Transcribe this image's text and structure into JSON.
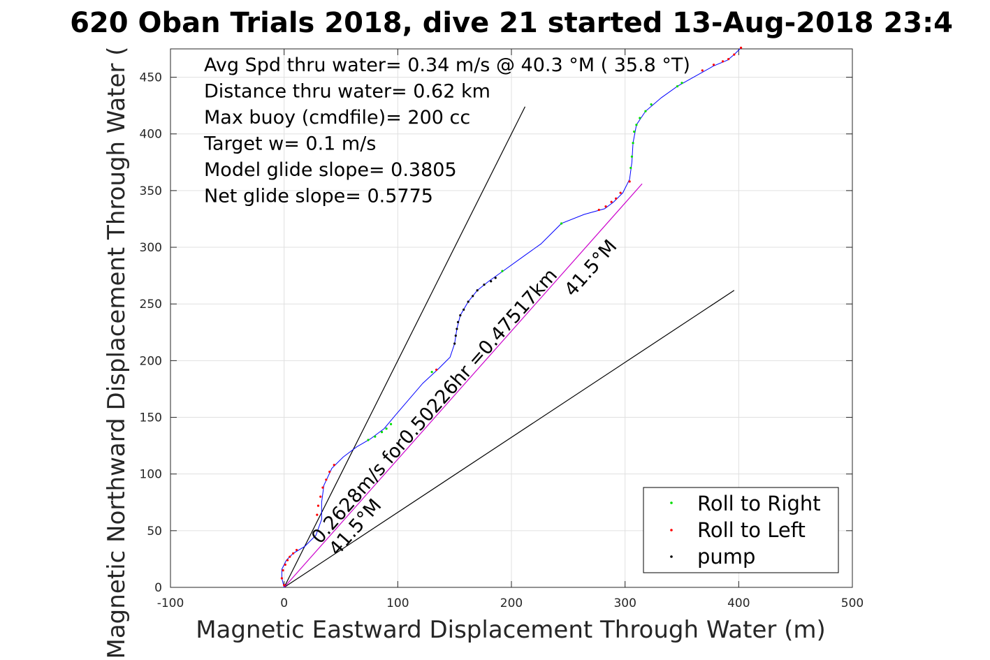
{
  "chart_data": {
    "type": "scatter",
    "title": "620 Oban Trials 2018, dive 21 started 13-Aug-2018 23:4",
    "xlabel": "Magnetic Eastward Displacement Through Water (m)",
    "ylabel": "Magnetic Northward Displacement Through Water (",
    "xlim": [
      -100,
      500
    ],
    "ylim": [
      0,
      475
    ],
    "xticks": [
      -100,
      0,
      100,
      200,
      300,
      400,
      500
    ],
    "xtick_labels": [
      "-100",
      "0",
      "100",
      "200",
      "300",
      "400",
      "500"
    ],
    "yticks": [
      0,
      50,
      100,
      150,
      200,
      250,
      300,
      350,
      400,
      450
    ],
    "ytick_labels": [
      "0",
      "50",
      "100",
      "150",
      "200",
      "250",
      "300",
      "350",
      "400",
      "450"
    ],
    "grid": true,
    "legend_position": "bottom-right",
    "legend": [
      "Roll to Right",
      "Roll to Left",
      "pump"
    ],
    "colors": {
      "track": "#0000ff",
      "roll_right": "#00dd00",
      "roll_left": "#ff0000",
      "pump": "#000000",
      "direction_line": "#cc00cc",
      "glide_lines": "#000000",
      "grid": "#e0e0e0"
    },
    "annotations": [
      "Avg Spd thru water=  0.34 m/s @  40.3 °M ( 35.8 °T)",
      "Distance thru water=  0.62 km",
      "Max buoy (cmdfile)= 200 cc",
      "Target w= 0.1 m/s",
      "Model glide slope= 0.3805",
      "Net glide slope= 0.5775"
    ],
    "rotated_labels": {
      "current": "0.2628m/s for0.50226hr =0.47517km",
      "current_heading_bottom": "41.5°M",
      "current_heading_top": "41.5°M"
    },
    "track": [
      [
        0,
        0
      ],
      [
        -2,
        8
      ],
      [
        -2,
        16
      ],
      [
        2,
        24
      ],
      [
        8,
        30
      ],
      [
        18,
        36
      ],
      [
        28,
        46
      ],
      [
        33,
        60
      ],
      [
        33,
        75
      ],
      [
        35,
        90
      ],
      [
        42,
        105
      ],
      [
        52,
        115
      ],
      [
        64,
        124
      ],
      [
        76,
        131
      ],
      [
        88,
        140
      ],
      [
        98,
        152
      ],
      [
        110,
        166
      ],
      [
        122,
        180
      ],
      [
        136,
        193
      ],
      [
        146,
        203
      ],
      [
        150,
        215
      ],
      [
        152,
        228
      ],
      [
        155,
        240
      ],
      [
        162,
        252
      ],
      [
        170,
        262
      ],
      [
        180,
        270
      ],
      [
        194,
        280
      ],
      [
        212,
        293
      ],
      [
        226,
        303
      ],
      [
        244,
        321
      ],
      [
        264,
        329
      ],
      [
        282,
        334
      ],
      [
        290,
        340
      ],
      [
        298,
        348
      ],
      [
        304,
        360
      ],
      [
        306,
        375
      ],
      [
        307,
        392
      ],
      [
        310,
        408
      ],
      [
        318,
        420
      ],
      [
        332,
        432
      ],
      [
        346,
        442
      ],
      [
        362,
        451
      ],
      [
        378,
        460
      ],
      [
        390,
        465
      ],
      [
        396,
        470
      ],
      [
        402,
        476
      ]
    ],
    "roll_left_points": [
      [
        0,
        2
      ],
      [
        -2,
        8
      ],
      [
        -1,
        15
      ],
      [
        1,
        20
      ],
      [
        3,
        24
      ],
      [
        5,
        27
      ],
      [
        8,
        30
      ],
      [
        11,
        33
      ],
      [
        29,
        64
      ],
      [
        30,
        72
      ],
      [
        32,
        80
      ],
      [
        34,
        88
      ],
      [
        37,
        95
      ],
      [
        40,
        102
      ],
      [
        44,
        108
      ],
      [
        134,
        192
      ],
      [
        277,
        333
      ],
      [
        283,
        336
      ],
      [
        288,
        340
      ],
      [
        292,
        343
      ],
      [
        296,
        348
      ],
      [
        304,
        358
      ],
      [
        368,
        456
      ],
      [
        378,
        461
      ],
      [
        386,
        464
      ],
      [
        391,
        466
      ],
      [
        396,
        470
      ],
      [
        402,
        476
      ]
    ],
    "roll_right_points": [
      [
        74,
        130
      ],
      [
        80,
        133
      ],
      [
        86,
        137
      ],
      [
        90,
        140
      ],
      [
        94,
        144
      ],
      [
        130,
        190
      ],
      [
        192,
        279
      ],
      [
        244,
        321
      ],
      [
        305,
        370
      ],
      [
        306,
        380
      ],
      [
        307,
        392
      ],
      [
        308,
        402
      ],
      [
        310,
        408
      ],
      [
        313,
        414
      ],
      [
        318,
        420
      ],
      [
        323,
        426
      ],
      [
        346,
        442
      ],
      [
        350,
        445
      ]
    ],
    "pump_points": [
      [
        150,
        215
      ],
      [
        151,
        222
      ],
      [
        152,
        228
      ],
      [
        153,
        234
      ],
      [
        155,
        240
      ],
      [
        158,
        245
      ],
      [
        162,
        252
      ],
      [
        166,
        257
      ],
      [
        170,
        262
      ],
      [
        176,
        267
      ],
      [
        182,
        270
      ],
      [
        186,
        273
      ]
    ],
    "current_line": [
      [
        0,
        0
      ],
      [
        315,
        356
      ]
    ],
    "glide_line_steep": [
      [
        0,
        0
      ],
      [
        212,
        424
      ]
    ],
    "glide_line_shallow": [
      [
        0,
        0
      ],
      [
        396,
        262
      ]
    ]
  }
}
